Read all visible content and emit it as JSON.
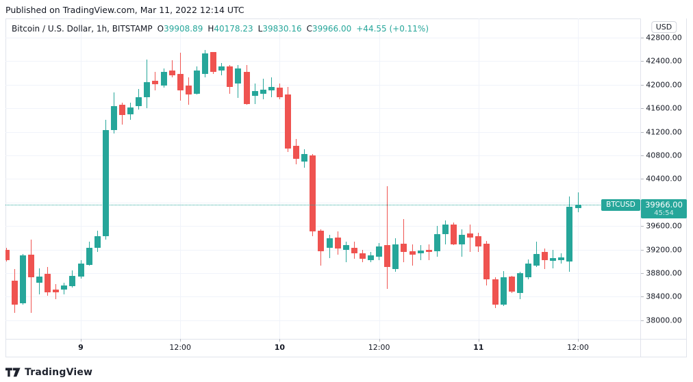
{
  "published_line": "Published on TradingView.com, Mar 11, 2022 12:14 UTC",
  "legend": {
    "symbol_title": "Bitcoin / U.S. Dollar, 1h, BITSTAMP",
    "ohlc": [
      {
        "k": "O",
        "v": "39908.89"
      },
      {
        "k": "H",
        "v": "40178.23"
      },
      {
        "k": "L",
        "v": "39830.16"
      },
      {
        "k": "C",
        "v": "39966.00"
      }
    ],
    "change": "+44.55 (+0.11%)"
  },
  "price_axis": {
    "currency_badge": "USD",
    "labels": [
      42800,
      42400,
      42000,
      41600,
      41200,
      40800,
      40400,
      39600,
      39200,
      38800,
      38400,
      38000
    ]
  },
  "price_label": {
    "symbol": "BTCUSD",
    "price": "39966.00",
    "countdown": "45:54"
  },
  "logo": {
    "text": "TradingView"
  },
  "colors": {
    "up": "#26a69a",
    "down": "#ef5350",
    "text": "#131722",
    "grid": "#f0f3fa",
    "border": "#e0e3eb"
  },
  "chart_data": {
    "type": "candlestick",
    "title": "Bitcoin / U.S. Dollar",
    "symbol": "BTCUSD",
    "exchange": "BITSTAMP",
    "interval": "1h",
    "start_time": "2022-03-08 15:00 UTC",
    "current_price": 39966.0,
    "ylim": [
      37684,
      43126
    ],
    "grid_price_step": 400,
    "grid_price_min": 38000,
    "grid_price_max": 42800,
    "x_ticks": [
      {
        "index": 9,
        "label": "9",
        "strong": true
      },
      {
        "index": 21,
        "label": "12:00",
        "strong": false
      },
      {
        "index": 33,
        "label": "10",
        "strong": true
      },
      {
        "index": 45,
        "label": "12:00",
        "strong": false
      },
      {
        "index": 57,
        "label": "11",
        "strong": true
      },
      {
        "index": 69,
        "label": "12:00",
        "strong": false
      }
    ],
    "candles": [
      [
        39195,
        39230,
        38998,
        39021
      ],
      [
        38672,
        38870,
        38126,
        38265
      ],
      [
        38288,
        39125,
        38265,
        39102
      ],
      [
        39114,
        39370,
        38126,
        38730
      ],
      [
        38637,
        38881,
        38440,
        38742
      ],
      [
        38788,
        38905,
        38416,
        38474
      ],
      [
        38521,
        38614,
        38358,
        38474
      ],
      [
        38521,
        38637,
        38440,
        38591
      ],
      [
        38579,
        38846,
        38556,
        38753
      ],
      [
        38742,
        39021,
        38707,
        38963
      ],
      [
        38939,
        39335,
        38928,
        39230
      ],
      [
        39230,
        39521,
        39160,
        39428
      ],
      [
        39428,
        41405,
        39370,
        41230
      ],
      [
        41230,
        41870,
        41172,
        41637
      ],
      [
        41660,
        41695,
        41323,
        41486
      ],
      [
        41498,
        41695,
        41405,
        41614
      ],
      [
        41637,
        41928,
        41579,
        41788
      ],
      [
        41788,
        42428,
        41602,
        42044
      ],
      [
        42067,
        42219,
        41905,
        42009
      ],
      [
        41986,
        42277,
        41951,
        42219
      ],
      [
        42242,
        42416,
        42126,
        42160
      ],
      [
        42184,
        42544,
        41730,
        41905
      ],
      [
        41986,
        42126,
        41660,
        41835
      ],
      [
        41847,
        42312,
        41835,
        42242
      ],
      [
        42184,
        42591,
        42126,
        42533
      ],
      [
        42556,
        42556,
        42184,
        42219
      ],
      [
        42242,
        42370,
        42160,
        42312
      ],
      [
        42312,
        42335,
        41847,
        41963
      ],
      [
        42021,
        42335,
        41777,
        42277
      ],
      [
        42219,
        42335,
        41660,
        41672
      ],
      [
        41812,
        42021,
        41672,
        41893
      ],
      [
        41847,
        42102,
        41753,
        41916
      ],
      [
        41905,
        42126,
        41788,
        41963
      ],
      [
        41951,
        42021,
        41753,
        41788
      ],
      [
        41835,
        41963,
        40858,
        40916
      ],
      [
        40963,
        41079,
        40649,
        40742
      ],
      [
        40695,
        40905,
        40591,
        40823
      ],
      [
        40800,
        40823,
        39428,
        39509
      ],
      [
        39521,
        39544,
        38928,
        39172
      ],
      [
        39230,
        39451,
        39056,
        39393
      ],
      [
        39405,
        39509,
        39114,
        39219
      ],
      [
        39195,
        39335,
        38986,
        39277
      ],
      [
        39230,
        39335,
        39044,
        39137
      ],
      [
        39137,
        39195,
        38986,
        39044
      ],
      [
        39021,
        39160,
        38986,
        39102
      ],
      [
        39079,
        39312,
        39021,
        39253
      ],
      [
        39277,
        40277,
        38533,
        38905
      ],
      [
        38870,
        39393,
        38823,
        39288
      ],
      [
        39300,
        39719,
        38986,
        39160
      ],
      [
        39172,
        39288,
        38928,
        39114
      ],
      [
        39137,
        39277,
        39021,
        39184
      ],
      [
        39195,
        39288,
        39021,
        39160
      ],
      [
        39172,
        39602,
        39079,
        39463
      ],
      [
        39463,
        39695,
        39288,
        39625
      ],
      [
        39625,
        39660,
        39277,
        39288
      ],
      [
        39288,
        39544,
        39079,
        39451
      ],
      [
        39474,
        39625,
        39160,
        39405
      ],
      [
        39428,
        39486,
        39160,
        39253
      ],
      [
        39300,
        39347,
        38591,
        38695
      ],
      [
        38695,
        38730,
        38207,
        38265
      ],
      [
        38265,
        38835,
        38242,
        38730
      ],
      [
        38742,
        38754,
        38463,
        38486
      ],
      [
        38463,
        38823,
        38358,
        38800
      ],
      [
        38730,
        39033,
        38695,
        38963
      ],
      [
        38928,
        39335,
        38905,
        39126
      ],
      [
        39160,
        39219,
        38870,
        39021
      ],
      [
        39009,
        39195,
        38881,
        39056
      ],
      [
        39021,
        39137,
        38963,
        39067
      ],
      [
        38998,
        40102,
        38823,
        39928
      ],
      [
        39908.89,
        40178.23,
        39830.16,
        39966.0
      ]
    ]
  }
}
